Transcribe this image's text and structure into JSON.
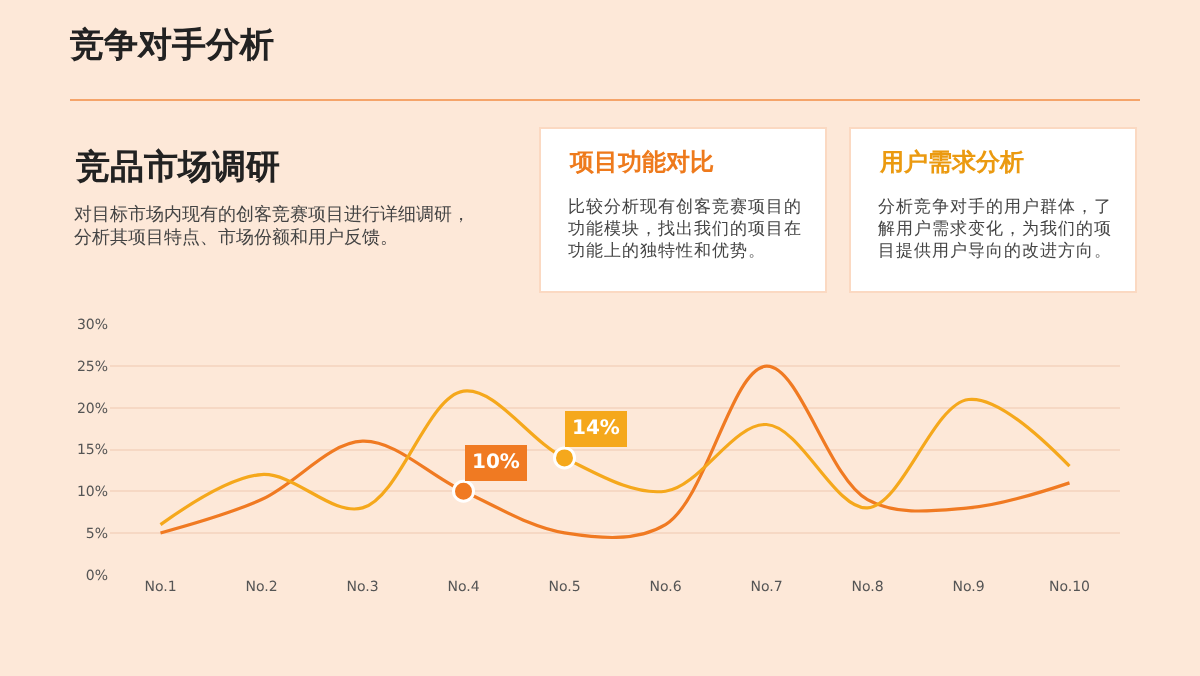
{
  "chart_data": {
    "type": "line",
    "title": "竞争对手分析",
    "annotations": [
      "竞品市场调研",
      "对目标市场内现有的创客竞赛项目进行详细调研，分析其项目特点、市场份额和用户反馈。",
      "项目功能对比",
      "比较分析现有创客竞赛项目的功能模块，找出我们的项目在功能上的独特性和优势。",
      "用户需求分析",
      "分析竞争对手的用户群体，了解用户需求变化，为我们的项目提供用户导向的改进方向。"
    ],
    "categories": [
      "No.1",
      "No.2",
      "No.3",
      "No.4",
      "No.5",
      "No.6",
      "No.7",
      "No.8",
      "No.9",
      "No.10"
    ],
    "series": [
      {
        "color": "#f07a22",
        "values": [
          5,
          9,
          16,
          10,
          5,
          6,
          25,
          9,
          8,
          11
        ],
        "value_labels": [
          null,
          null,
          null,
          "10%",
          null,
          null,
          null,
          null,
          null,
          null
        ]
      },
      {
        "color": "#f5a81c",
        "values": [
          6,
          12,
          8,
          22,
          14,
          10,
          18,
          8,
          21,
          13
        ],
        "value_labels": [
          null,
          null,
          null,
          null,
          "14%",
          null,
          null,
          null,
          null,
          null
        ]
      }
    ],
    "ylim": [
      0,
      30
    ],
    "yticks": [
      {
        "value": 0,
        "label": "0%"
      },
      {
        "value": 5,
        "label": "5%"
      },
      {
        "value": 10,
        "label": "10%"
      },
      {
        "value": 15,
        "label": "15%"
      },
      {
        "value": 20,
        "label": "20%"
      },
      {
        "value": 25,
        "label": "25%"
      },
      {
        "value": 30,
        "label": "30%"
      }
    ],
    "grid": "y",
    "marker": "none",
    "line_style": "solid"
  }
}
